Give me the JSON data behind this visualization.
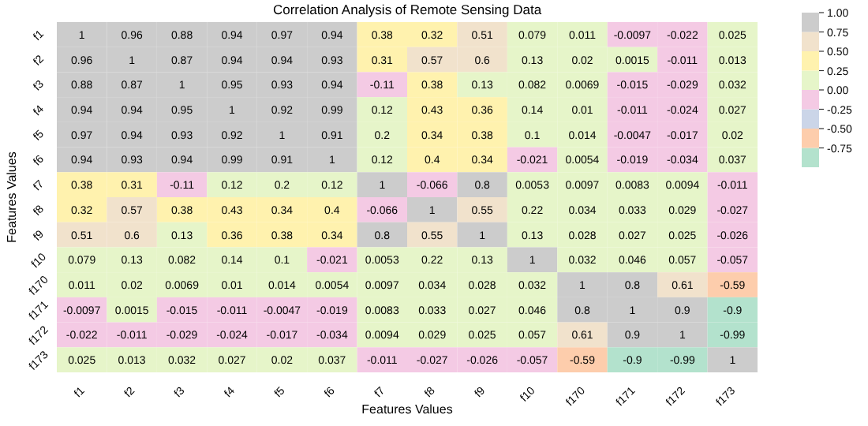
{
  "chart_data": {
    "type": "heatmap",
    "title": "Correlation Analysis of Remote Sensing Data",
    "xlabel": "Features Values",
    "ylabel": "Features Values",
    "categories": [
      "f1",
      "f2",
      "f3",
      "f4",
      "f5",
      "f6",
      "f7",
      "f8",
      "f9",
      "f10",
      "f170",
      "f171",
      "f172",
      "f173"
    ],
    "y_categories": [
      "f1",
      "f2",
      "f3",
      "f4",
      "f5",
      "f6",
      "f7",
      "f8",
      "f9",
      "f10",
      "f170",
      "f171",
      "f172",
      "f173"
    ],
    "cells": [
      [
        1,
        0.96,
        0.88,
        0.94,
        0.97,
        0.94,
        0.38,
        0.32,
        0.51,
        0.079,
        0.011,
        -0.0097,
        -0.022,
        0.025
      ],
      [
        0.96,
        1,
        0.87,
        0.94,
        0.94,
        0.93,
        0.31,
        0.57,
        0.6,
        0.13,
        0.02,
        0.0015,
        -0.011,
        0.013
      ],
      [
        0.88,
        0.87,
        1,
        0.95,
        0.93,
        0.94,
        -0.11,
        0.38,
        0.13,
        0.082,
        0.0069,
        -0.015,
        -0.029,
        0.032
      ],
      [
        0.94,
        0.94,
        0.95,
        1,
        0.92,
        0.99,
        0.12,
        0.43,
        0.36,
        0.14,
        0.01,
        -0.011,
        -0.024,
        0.027
      ],
      [
        0.97,
        0.94,
        0.93,
        0.92,
        1,
        0.91,
        0.2,
        0.34,
        0.38,
        0.1,
        0.014,
        -0.0047,
        -0.017,
        0.02
      ],
      [
        0.94,
        0.93,
        0.94,
        0.99,
        0.91,
        1,
        0.12,
        0.4,
        0.34,
        -0.021,
        0.0054,
        -0.019,
        -0.034,
        0.037
      ],
      [
        0.38,
        0.31,
        -0.11,
        0.12,
        0.2,
        0.12,
        1,
        -0.066,
        0.8,
        0.0053,
        0.0097,
        0.0083,
        0.0094,
        -0.011
      ],
      [
        0.32,
        0.57,
        0.38,
        0.43,
        0.34,
        0.4,
        -0.066,
        1,
        0.55,
        0.22,
        0.034,
        0.033,
        0.029,
        -0.027
      ],
      [
        0.51,
        0.6,
        0.13,
        0.36,
        0.38,
        0.34,
        0.8,
        0.55,
        1,
        0.13,
        0.028,
        0.027,
        0.025,
        -0.026
      ],
      [
        0.079,
        0.13,
        0.082,
        0.14,
        0.1,
        -0.021,
        0.0053,
        0.22,
        0.13,
        1,
        0.032,
        0.046,
        0.057,
        -0.057
      ],
      [
        0.011,
        0.02,
        0.0069,
        0.01,
        0.014,
        0.0054,
        0.0097,
        0.034,
        0.028,
        0.032,
        1,
        0.8,
        0.61,
        -0.59
      ],
      [
        -0.0097,
        0.0015,
        -0.015,
        -0.011,
        -0.0047,
        -0.019,
        0.0083,
        0.033,
        0.027,
        0.046,
        0.8,
        1,
        0.9,
        -0.9
      ],
      [
        -0.022,
        -0.011,
        -0.029,
        -0.024,
        -0.017,
        -0.034,
        0.0094,
        0.029,
        0.025,
        0.057,
        0.61,
        0.9,
        1,
        -0.99
      ],
      [
        0.025,
        0.013,
        0.032,
        0.027,
        0.02,
        0.037,
        -0.011,
        -0.027,
        -0.026,
        -0.057,
        -0.59,
        -0.9,
        -0.99,
        1
      ]
    ],
    "data_labels": true,
    "clim": [
      -1,
      1
    ],
    "cticks": [
      {
        "value": 1,
        "label": "1.00"
      },
      {
        "value": 0.75,
        "label": "0.75"
      },
      {
        "value": 0.5,
        "label": "0.50"
      },
      {
        "value": 0.25,
        "label": "0.25"
      },
      {
        "value": 0,
        "label": "0.00"
      },
      {
        "value": -0.25,
        "label": "-0.25"
      },
      {
        "value": -0.5,
        "label": "-0.50"
      },
      {
        "value": -0.75,
        "label": "-0.75"
      }
    ]
  }
}
